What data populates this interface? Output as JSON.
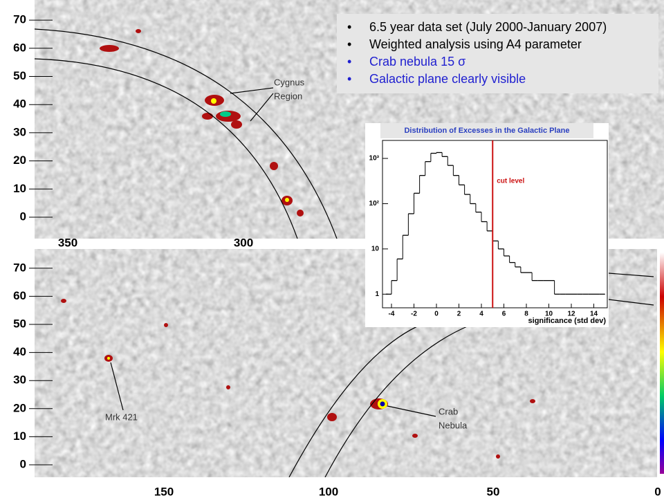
{
  "maps": [
    {
      "yticks": [
        0,
        10,
        20,
        30,
        40,
        50,
        60,
        70
      ],
      "xticks": [
        350,
        300
      ]
    },
    {
      "yticks": [
        0,
        10,
        20,
        30,
        40,
        50,
        60,
        70
      ],
      "xticks": [
        150,
        100,
        50,
        0
      ]
    }
  ],
  "bullets": [
    {
      "text": "6.5 year data set (July 2000-January 2007)",
      "color": "#000000"
    },
    {
      "text": "Weighted analysis using A4 parameter",
      "color": "#000000"
    },
    {
      "text": "Crab nebula 15 σ",
      "color": "#1f1fd0"
    },
    {
      "text": "Galactic plane clearly visible",
      "color": "#1f1fd0"
    }
  ],
  "annotations": {
    "cygnus": [
      "Cygnus",
      "Region"
    ],
    "mrk": "Mrk 421",
    "crab": [
      "Crab",
      "Nebula"
    ]
  },
  "chart_data": {
    "type": "histogram",
    "title": "Distribution of Excesses in the Galactic Plane",
    "x_label": "significance (std dev)",
    "log_y": true,
    "color": "#000000",
    "bins": [
      -4.5,
      -4,
      -3.5,
      -3,
      -2.5,
      -2,
      -1.5,
      -1,
      -0.5,
      0,
      0.5,
      1,
      1.5,
      2,
      2.5,
      3,
      3.5,
      4,
      4.5,
      5,
      5.5,
      6,
      6.5,
      7,
      7.5,
      8,
      8.5,
      9,
      9.5,
      10,
      10.5,
      11,
      11.5,
      12,
      12.5,
      13,
      13.5,
      14,
      14.5,
      15
    ],
    "counts": [
      1,
      2,
      6,
      20,
      60,
      170,
      420,
      850,
      1300,
      1350,
      1100,
      700,
      420,
      260,
      160,
      100,
      65,
      40,
      25,
      15,
      10,
      7,
      5,
      4,
      3,
      3,
      2,
      2,
      2,
      2,
      1,
      1,
      1,
      1,
      1,
      1,
      1,
      1,
      1
    ],
    "xlim": [
      -4.8,
      15.2
    ],
    "xticks": [
      -4,
      -2,
      0,
      2,
      4,
      6,
      8,
      10,
      12,
      14
    ],
    "ylim": [
      0.5,
      2500
    ],
    "yticks": [
      1,
      10,
      {
        "value": 100,
        "label": "10²"
      },
      {
        "value": 1000,
        "label": "10³"
      }
    ],
    "cut_level": {
      "label": "cut level",
      "value": 5,
      "color": "#cc1111"
    }
  }
}
